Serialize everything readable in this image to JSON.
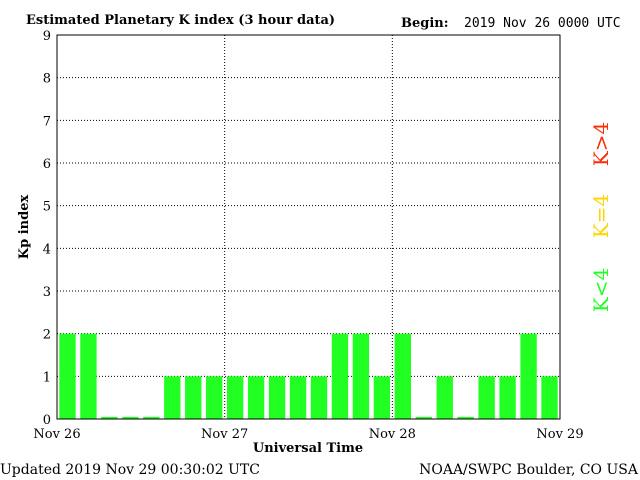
{
  "header": {
    "title": "Estimated Planetary K index (3 hour data)",
    "begin_label": "Begin:",
    "begin_value": "2019 Nov 26 0000 UTC"
  },
  "footer": {
    "updated": "Updated 2019 Nov 29 00:30:02 UTC",
    "source": "NOAA/SWPC Boulder, CO USA"
  },
  "legend": [
    {
      "label": "K>4",
      "color": "#ff2a00"
    },
    {
      "label": "K=4",
      "color": "#ffd400"
    },
    {
      "label": "K<4",
      "color": "#22ff22"
    }
  ],
  "chart_data": {
    "type": "bar",
    "title": "Estimated Planetary K index (3 hour data)",
    "xlabel": "Universal Time",
    "ylabel": "Kp index",
    "ylim": [
      0,
      9
    ],
    "yticks": [
      0,
      1,
      2,
      3,
      4,
      5,
      6,
      7,
      8,
      9
    ],
    "xtick_labels": [
      "Nov 26",
      "Nov 27",
      "Nov 28",
      "Nov 29"
    ],
    "interval_hours": 3,
    "values": [
      2,
      2,
      0.05,
      0.05,
      0.05,
      1,
      1,
      1,
      1,
      1,
      1,
      1,
      1,
      2,
      2,
      1,
      2,
      0.05,
      1,
      0.05,
      1,
      1,
      2,
      1
    ],
    "bar_color": "#22ff22",
    "grid": "dotted"
  }
}
